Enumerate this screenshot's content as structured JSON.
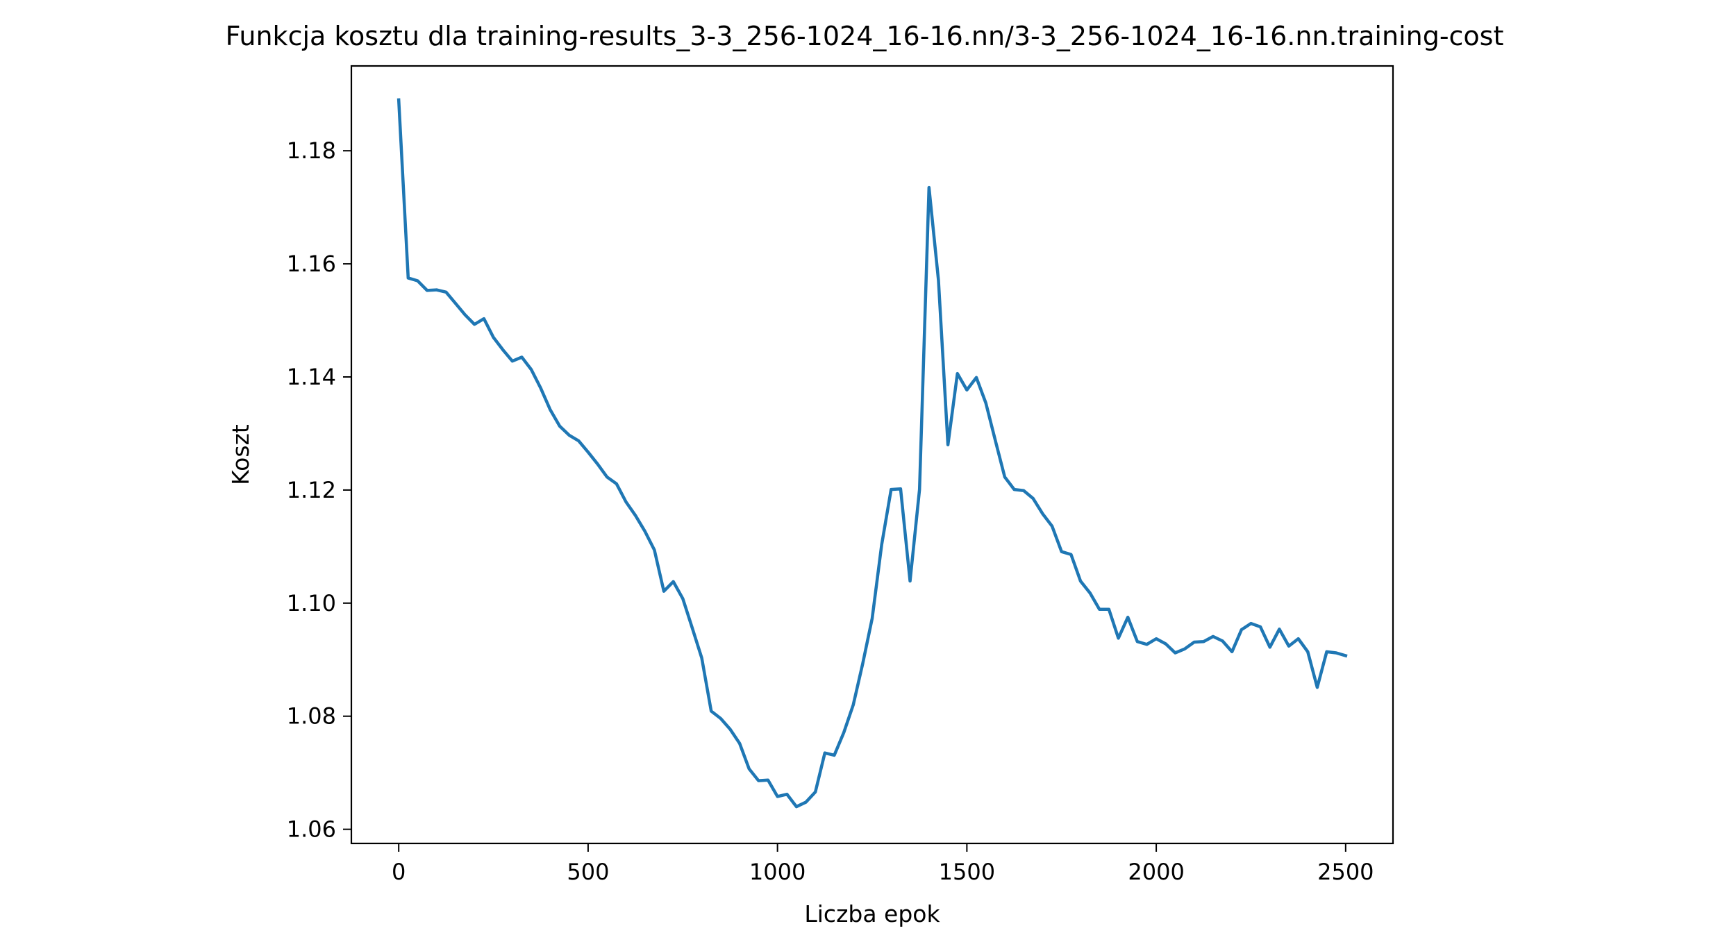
{
  "chart_data": {
    "type": "line",
    "title": "Funkcja kosztu dla training-results_3-3_256-1024_16-16.nn/3-3_256-1024_16-16.nn.training-cost",
    "xlabel": "Liczba epok",
    "ylabel": "Koszt",
    "xlim": [
      -125,
      2625
    ],
    "ylim": [
      1.0575,
      1.195
    ],
    "xticks": [
      0,
      500,
      1000,
      1500,
      2000,
      2500
    ],
    "xtick_labels": [
      "0",
      "500",
      "1000",
      "1500",
      "2000",
      "2500"
    ],
    "yticks": [
      1.06,
      1.08,
      1.1,
      1.12,
      1.14,
      1.16,
      1.18
    ],
    "ytick_labels": [
      "1.06",
      "1.08",
      "1.10",
      "1.12",
      "1.14",
      "1.16",
      "1.18"
    ],
    "grid": false,
    "color": "#1f77b4",
    "series": [
      {
        "x": [
          0,
          25,
          50,
          75,
          100,
          125,
          150,
          175,
          200,
          225,
          250,
          275,
          300,
          325,
          350,
          375,
          400,
          425,
          450,
          475,
          500,
          525,
          550,
          575,
          600,
          625,
          650,
          675,
          700,
          725,
          750,
          775,
          800,
          825,
          850,
          875,
          900,
          925,
          950,
          975,
          1000,
          1025,
          1050,
          1075,
          1100,
          1125,
          1150,
          1175,
          1200,
          1225,
          1250,
          1275,
          1300,
          1325,
          1350,
          1375,
          1400,
          1425,
          1450,
          1475,
          1500,
          1525,
          1550,
          1575,
          1600,
          1625,
          1650,
          1675,
          1700,
          1725,
          1750,
          1775,
          1800,
          1825,
          1850,
          1875,
          1900,
          1925,
          1950,
          1975,
          2000,
          2025,
          2050,
          2075,
          2100,
          2125,
          2150,
          2175,
          2200,
          2225,
          2250,
          2275,
          2300,
          2325,
          2350,
          2375,
          2400,
          2425,
          2450,
          2475,
          2500
        ],
        "values": [
          1.189,
          1.1575,
          1.157,
          1.1553,
          1.1554,
          1.155,
          1.153,
          1.151,
          1.1493,
          1.1503,
          1.147,
          1.1448,
          1.1428,
          1.1435,
          1.1413,
          1.138,
          1.1342,
          1.1313,
          1.1297,
          1.1287,
          1.1267,
          1.1246,
          1.1223,
          1.1211,
          1.1179,
          1.1155,
          1.1127,
          1.1094,
          1.1021,
          1.1038,
          1.1008,
          1.0956,
          1.0903,
          1.0809,
          1.0796,
          1.0777,
          1.0752,
          1.0707,
          1.0686,
          1.0687,
          1.0658,
          1.0662,
          1.064,
          1.0648,
          1.0666,
          1.0735,
          1.0731,
          1.0771,
          1.082,
          1.0893,
          1.0973,
          1.1103,
          1.1201,
          1.1202,
          1.1039,
          1.1201,
          1.1735,
          1.1571,
          1.128,
          1.1406,
          1.1377,
          1.1399,
          1.1354,
          1.1288,
          1.1223,
          1.1201,
          1.1199,
          1.1185,
          1.1158,
          1.1136,
          1.1091,
          1.1086,
          1.1039,
          1.1018,
          1.0989,
          1.0989,
          1.0938,
          1.0975,
          1.0932,
          1.0927,
          1.0937,
          1.0928,
          1.0912,
          1.0919,
          1.0931,
          1.0932,
          1.0941,
          1.0933,
          1.0914,
          1.0953,
          1.0964,
          1.0958,
          1.0922,
          1.0954,
          1.0924,
          1.0937,
          1.0914,
          1.0851,
          1.0914,
          1.0912,
          1.0907
        ]
      }
    ]
  }
}
